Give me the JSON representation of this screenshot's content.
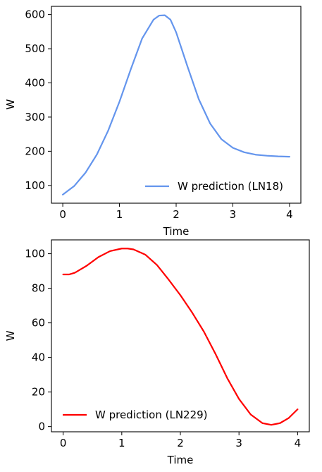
{
  "chart_data": [
    {
      "type": "line",
      "xlabel": "Time",
      "ylabel": "W",
      "xlim": [
        -0.2,
        4.2
      ],
      "ylim": [
        48,
        624
      ],
      "xticks": [
        "0",
        "1",
        "2",
        "3",
        "4"
      ],
      "yticks": [
        "100",
        "200",
        "300",
        "400",
        "500",
        "600"
      ],
      "grid": false,
      "legend_position": "lower-right",
      "series": [
        {
          "name": "W prediction (LN18)",
          "color": "#6495ED",
          "x": [
            0,
            0.2,
            0.4,
            0.6,
            0.8,
            1.0,
            1.2,
            1.4,
            1.6,
            1.7,
            1.8,
            1.9,
            2.0,
            2.2,
            2.4,
            2.6,
            2.8,
            3.0,
            3.2,
            3.4,
            3.6,
            3.8,
            4.0
          ],
          "y": [
            73,
            98,
            137,
            190,
            260,
            345,
            440,
            530,
            585,
            597,
            598,
            585,
            548,
            448,
            352,
            281,
            235,
            210,
            197,
            190,
            187,
            185,
            184
          ]
        }
      ]
    },
    {
      "type": "line",
      "xlabel": "Time",
      "ylabel": "W",
      "xlim": [
        -0.2,
        4.2
      ],
      "ylim": [
        -3,
        108
      ],
      "xticks": [
        "0",
        "1",
        "2",
        "3",
        "4"
      ],
      "yticks": [
        "0",
        "20",
        "40",
        "60",
        "80",
        "100"
      ],
      "grid": false,
      "legend_position": "lower-left",
      "series": [
        {
          "name": "W prediction (LN229)",
          "color": "#FF0000",
          "x": [
            0,
            0.1,
            0.2,
            0.4,
            0.6,
            0.8,
            1.0,
            1.1,
            1.2,
            1.4,
            1.6,
            1.8,
            2.0,
            2.2,
            2.4,
            2.6,
            2.8,
            3.0,
            3.2,
            3.4,
            3.55,
            3.7,
            3.85,
            4.0
          ],
          "y": [
            88,
            88,
            89,
            93,
            98,
            101.5,
            103,
            103,
            102.5,
            99.5,
            93.5,
            85,
            76,
            66,
            55,
            42,
            28,
            16,
            7,
            2,
            1,
            2,
            5,
            10
          ]
        }
      ]
    }
  ]
}
